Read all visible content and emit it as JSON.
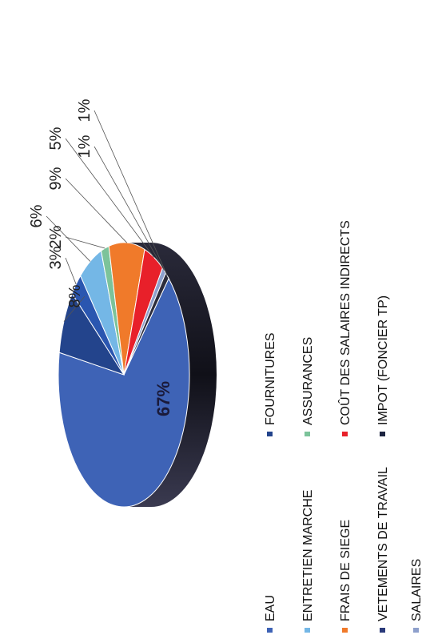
{
  "chart_data": {
    "type": "pie",
    "categories": [
      "EAU",
      "FOURNITURES",
      "ENTRETIEN MARCHE",
      "ASSURANCES",
      "FRAIS DE SIEGE",
      "COÛT DES SALAIRES INDIRECTS",
      "VETEMENTS DE TRAVAIL",
      "IMPOT (FONCIER TP)",
      "SALAIRES"
    ],
    "values": [
      67,
      8,
      3,
      6,
      2,
      9,
      5,
      1,
      1
    ],
    "data_labels": [
      "67%",
      "8%",
      "3%",
      "6%",
      "2%",
      "9%",
      "5%",
      "1%",
      "1%"
    ],
    "colors": [
      "#3e63b6",
      "#23448c",
      "#2a56b0",
      "#74b7e6",
      "#7cc39a",
      "#f07a2a",
      "#e8202a",
      "#8ea0cc",
      "#2c2c3c"
    ],
    "legend": {
      "position": "bottom",
      "items": [
        {
          "label": "EAU",
          "color": "#3e63b6"
        },
        {
          "label": "FOURNITURES",
          "color": "#23448c"
        },
        {
          "label": "ENTRETIEN MARCHE",
          "color": "#74b7e6"
        },
        {
          "label": "ASSURANCES",
          "color": "#7cc39a"
        },
        {
          "label": "FRAIS DE SIEGE",
          "color": "#f07a2a"
        },
        {
          "label": "COÛT DES SALAIRES INDIRECTS",
          "color": "#e8202a"
        },
        {
          "label": "VETEMENTS DE TRAVAIL",
          "color": "#2a3a7a"
        },
        {
          "label": "IMPOT (FONCIER TP)",
          "color": "#1c2340"
        },
        {
          "label": "SALAIRES",
          "color": "#8ea0cc"
        }
      ]
    },
    "style": "3d-pie",
    "orientation": "rotated-90-counterclockwise"
  }
}
